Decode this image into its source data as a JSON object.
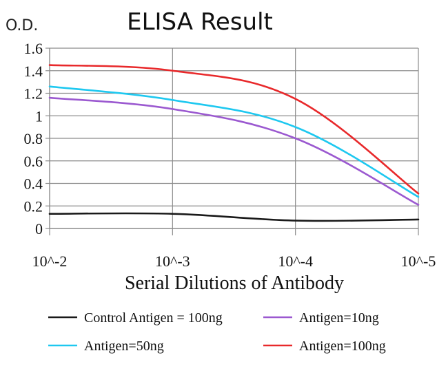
{
  "chart_data": {
    "type": "line",
    "title": "ELISA Result",
    "ylabel": "O.D.",
    "xlabel": "Serial Dilutions of Antibody",
    "x": [
      "10^-2",
      "10^-3",
      "10^-4",
      "10^-5"
    ],
    "y_ticks": [
      "0",
      "0.2",
      "0.4",
      "0.6",
      "0.8",
      "1",
      "1.2",
      "1.4",
      "1.6"
    ],
    "ylim": [
      0,
      1.6
    ],
    "grid": true,
    "legend_position": "bottom",
    "series": [
      {
        "name": "Control Antigen = 100ng",
        "color": "#1a1a1a",
        "values": [
          0.13,
          0.13,
          0.07,
          0.08
        ]
      },
      {
        "name": "Antigen=10ng",
        "color": "#9b59d0",
        "values": [
          1.16,
          1.06,
          0.8,
          0.21
        ]
      },
      {
        "name": "Antigen=50ng",
        "color": "#1ec8f0",
        "values": [
          1.26,
          1.14,
          0.9,
          0.28
        ]
      },
      {
        "name": "Antigen=100ng",
        "color": "#e8292b",
        "values": [
          1.45,
          1.4,
          1.15,
          0.31
        ]
      }
    ]
  }
}
